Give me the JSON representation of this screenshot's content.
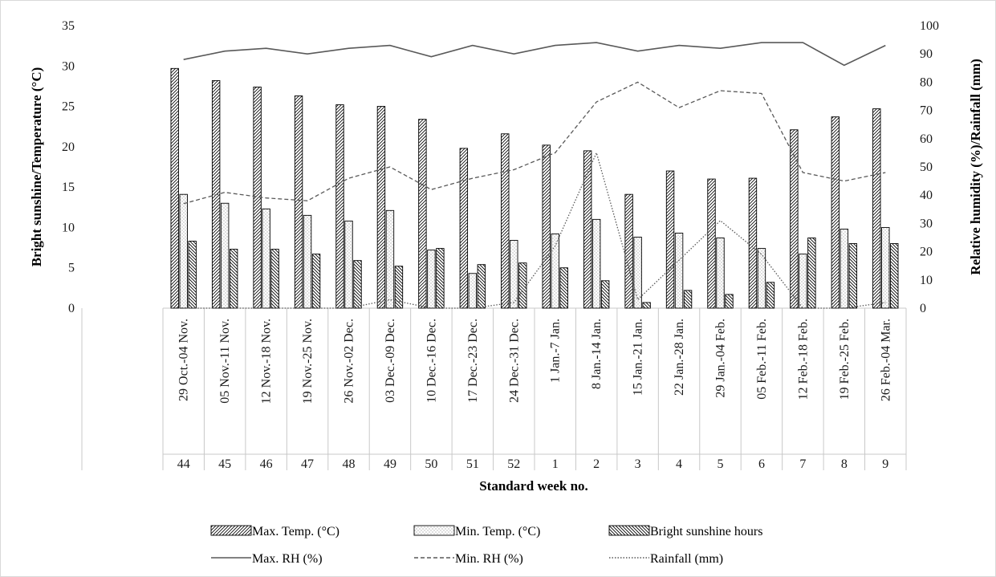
{
  "chart_data": {
    "type": "bar+line",
    "x_week_labels": [
      "44",
      "45",
      "46",
      "47",
      "48",
      "49",
      "50",
      "51",
      "52",
      "1",
      "2",
      "3",
      "4",
      "5",
      "6",
      "7",
      "8",
      "9"
    ],
    "x_date_labels": [
      "29 Oct.-04 Nov.",
      "05 Nov.-11 Nov.",
      "12 Nov.-18 Nov.",
      "19 Nov.-25 Nov.",
      "26 Nov.-02 Dec.",
      "03 Dec.-09 Dec.",
      "10 Dec.-16 Dec.",
      "17 Dec.-23 Dec.",
      "24 Dec.-31 Dec.",
      "1 Jan.-7 Jan.",
      "8 Jan.-14 Jan.",
      "15 Jan.-21 Jan.",
      "22 Jan.-28 Jan.",
      "29 Jan.-04 Feb.",
      "05 Feb.-11 Feb.",
      "12 Feb.-18 Feb.",
      "19 Feb.-25 Feb.",
      "26 Feb.-04 Mar."
    ],
    "xlabel": "Standard week no.",
    "ylabel_left": "Bright sunshine/Temperature (°C)",
    "ylabel_right": "Relative humidity (%)/Rainfall (mm)",
    "ylim_left": [
      0,
      35
    ],
    "yticks_left": [
      "0",
      "5",
      "10",
      "15",
      "20",
      "25",
      "30",
      "35"
    ],
    "ylim_right": [
      0,
      100
    ],
    "yticks_right": [
      "0",
      "10",
      "20",
      "30",
      "40",
      "50",
      "60",
      "70",
      "80",
      "90",
      "100"
    ],
    "grid": false,
    "legend_position": "bottom",
    "bar_series": [
      {
        "name": "Max. Temp. (°C)",
        "axis": "left",
        "values": [
          29.7,
          28.2,
          27.4,
          26.3,
          25.2,
          25.0,
          23.4,
          19.8,
          21.6,
          20.2,
          19.5,
          14.1,
          17.0,
          16.0,
          16.1,
          22.1,
          23.7,
          24.7
        ]
      },
      {
        "name": "Min. Temp. (°C)",
        "axis": "left",
        "values": [
          14.1,
          13.0,
          12.3,
          11.5,
          10.8,
          12.1,
          7.2,
          4.3,
          8.4,
          9.2,
          11.0,
          8.8,
          9.3,
          8.7,
          7.4,
          6.7,
          9.8,
          10.0
        ]
      },
      {
        "name": "Bright sunshine hours",
        "axis": "left",
        "values": [
          8.3,
          7.3,
          7.3,
          6.7,
          5.9,
          5.2,
          7.4,
          5.4,
          5.6,
          5.0,
          3.4,
          0.7,
          2.2,
          1.7,
          3.2,
          8.7,
          8.0,
          8.0
        ]
      }
    ],
    "line_series": [
      {
        "name": "Max. RH (%)",
        "axis": "right",
        "style": "solid",
        "values": [
          88,
          91,
          92,
          90,
          92,
          93,
          89,
          93,
          90,
          93,
          94,
          91,
          93,
          92,
          94,
          94,
          86,
          93
        ]
      },
      {
        "name": "Min. RH (%)",
        "axis": "right",
        "style": "dashed",
        "values": [
          37,
          41,
          39,
          38,
          46,
          50,
          42,
          46,
          49,
          55,
          73,
          80,
          71,
          77,
          76,
          48,
          45,
          48
        ]
      },
      {
        "name": "Rainfall (mm)",
        "axis": "right",
        "style": "dotted",
        "values": [
          0,
          0,
          0,
          0,
          0,
          3,
          0,
          0,
          2,
          22,
          55,
          3,
          17,
          31,
          19,
          0,
          0,
          2
        ]
      }
    ],
    "colors": {
      "bar_stroke": "#000000",
      "line": "#595959",
      "axis": "#c8c8c8"
    }
  }
}
